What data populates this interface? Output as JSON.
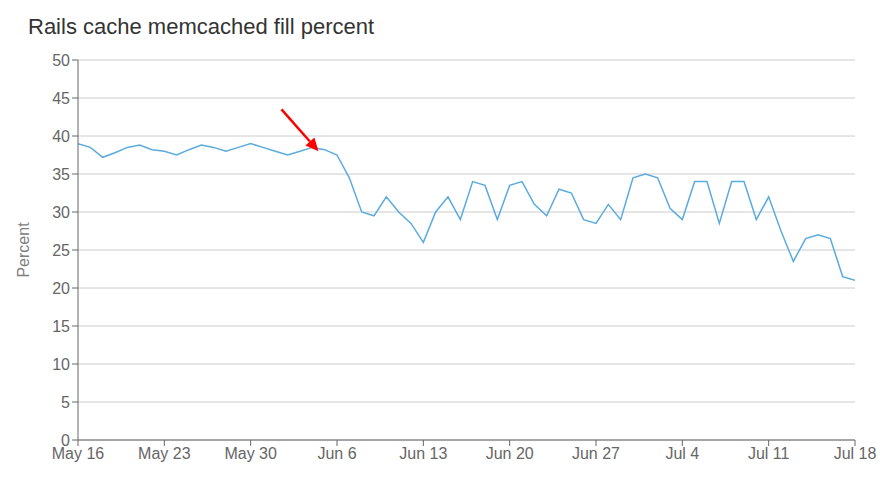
{
  "chart_data": {
    "type": "line",
    "title": "Rails cache memcached fill percent",
    "y_label": "Percent",
    "x": [
      0,
      1,
      2,
      3,
      4,
      5,
      6,
      7,
      8,
      9,
      10,
      11,
      12,
      13,
      14,
      15,
      16,
      17,
      18,
      19,
      20,
      21,
      22,
      23,
      24,
      25,
      26,
      27,
      28,
      29,
      30,
      31,
      32,
      33,
      34,
      35,
      36,
      37,
      38,
      39,
      40,
      41,
      42,
      43,
      44,
      45,
      46,
      47,
      48,
      49,
      50,
      51,
      52,
      53,
      54,
      55,
      56,
      57,
      58,
      59,
      60,
      61,
      62,
      63
    ],
    "values": [
      39.0,
      38.5,
      37.2,
      37.8,
      38.5,
      38.8,
      38.2,
      38.0,
      37.5,
      38.2,
      38.8,
      38.5,
      38.0,
      38.5,
      39.0,
      38.5,
      38.0,
      37.5,
      38.0,
      38.5,
      38.2,
      37.5,
      34.5,
      30.0,
      29.5,
      32.0,
      30.0,
      28.5,
      26.0,
      30.0,
      32.0,
      29.0,
      34.0,
      33.5,
      29.0,
      33.5,
      34.0,
      31.0,
      29.5,
      33.0,
      32.5,
      29.0,
      28.5,
      31.0,
      29.0,
      34.5,
      35.0,
      34.5,
      30.5,
      29.0,
      34.0,
      34.0,
      28.5,
      34.0,
      34.0,
      29.0,
      32.0,
      27.5,
      23.5,
      26.5,
      27.0,
      26.5,
      21.5,
      21.0
    ],
    "color": "#5aabde",
    "xlim": [
      0,
      63
    ],
    "xticks": [
      {
        "value": 0,
        "label": "May 16"
      },
      {
        "value": 7,
        "label": "May 23"
      },
      {
        "value": 14,
        "label": "May 30"
      },
      {
        "value": 21,
        "label": "Jun 6"
      },
      {
        "value": 28,
        "label": "Jun 13"
      },
      {
        "value": 35,
        "label": "Jun 20"
      },
      {
        "value": 42,
        "label": "Jun 27"
      },
      {
        "value": 49,
        "label": "Jul 4"
      },
      {
        "value": 56,
        "label": "Jul 11"
      },
      {
        "value": 63,
        "label": "Jul 18"
      }
    ],
    "ylim": [
      0,
      50
    ],
    "yticks": [
      0,
      5,
      10,
      15,
      20,
      25,
      30,
      35,
      40,
      45,
      50
    ],
    "grid": true,
    "arrows": [
      {
        "from": [
          16.5,
          43.5
        ],
        "to": [
          19.5,
          38.0
        ],
        "color": "red"
      }
    ]
  }
}
